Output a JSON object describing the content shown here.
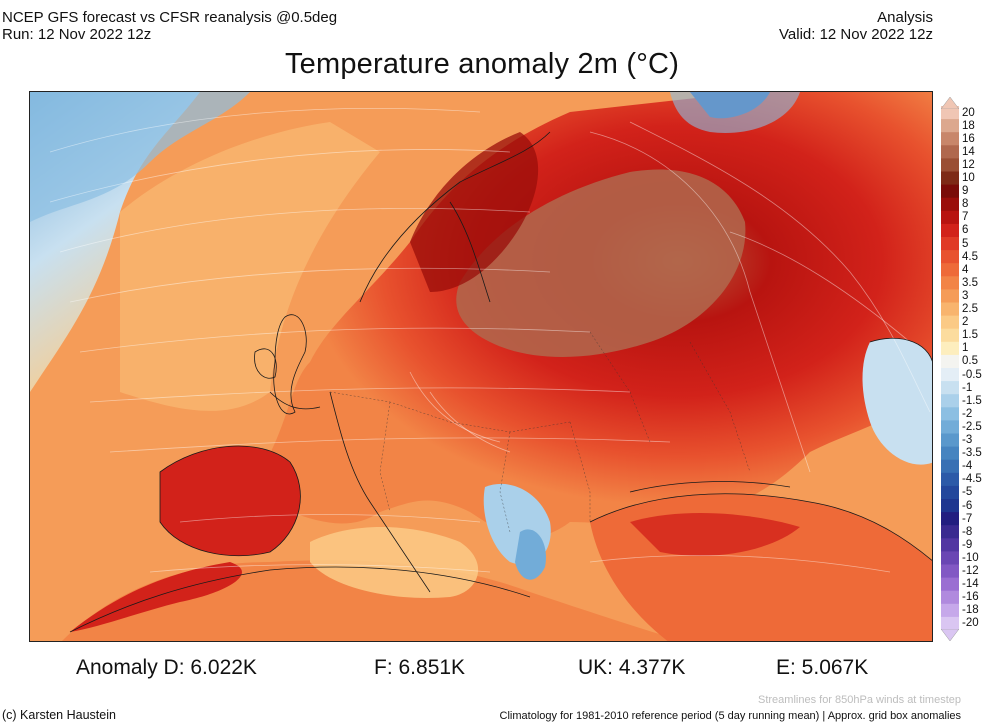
{
  "header": {
    "line1_left": "NCEP GFS forecast vs CFSR reanalysis @0.5deg",
    "line2_left": "Run: 12 Nov 2022 12z",
    "line1_right": "Analysis",
    "line2_right": "Valid: 12 Nov 2022 12z"
  },
  "title": "Temperature anomaly 2m (°C)",
  "colorbar": {
    "ticks": [
      "20",
      "18",
      "16",
      "14",
      "12",
      "10",
      "9",
      "8",
      "7",
      "6",
      "5",
      "4.5",
      "4",
      "3.5",
      "3",
      "2.5",
      "2",
      "1.5",
      "1",
      "0.5",
      "-0.5",
      "-1",
      "-1.5",
      "-2",
      "-2.5",
      "-3",
      "-3.5",
      "-4",
      "-4.5",
      "-5",
      "-6",
      "-7",
      "-8",
      "-9",
      "-10",
      "-12",
      "-14",
      "-16",
      "-18",
      "-20"
    ],
    "colors": [
      "#f0c6b4",
      "#dca88e",
      "#c8866a",
      "#b0684e",
      "#9a4e34",
      "#7e2a16",
      "#7a0c08",
      "#9a0e0a",
      "#b81410",
      "#d2221a",
      "#e03a26",
      "#e8522e",
      "#ee6a38",
      "#f28446",
      "#f59c58",
      "#f8b46e",
      "#fbca86",
      "#fcdc9e",
      "#fdeebe",
      "#f4f4f0",
      "#e4eef6",
      "#c8e0f0",
      "#aad0ea",
      "#8cbfe2",
      "#72acd8",
      "#5a98cc",
      "#4684c0",
      "#3870b4",
      "#2c5aa8",
      "#23479c",
      "#1e3690",
      "#221e80",
      "#3a2a90",
      "#5236a2",
      "#6a46b4",
      "#8258c4",
      "#9a6ed2",
      "#b08ade",
      "#c6a8ea",
      "#dac6f2"
    ]
  },
  "anomalies": {
    "d": "Anomaly D: 6.022K",
    "f": "F: 6.851K",
    "uk": "UK: 4.377K",
    "e": "E: 5.067K"
  },
  "footer": {
    "credit": "(c) Karsten Haustein",
    "stream_note": "Streamlines for 850hPa winds at timestep",
    "climatology": "Climatology for 1981-2010 reference period (5 day running mean) | Approx. grid box anomalies"
  }
}
